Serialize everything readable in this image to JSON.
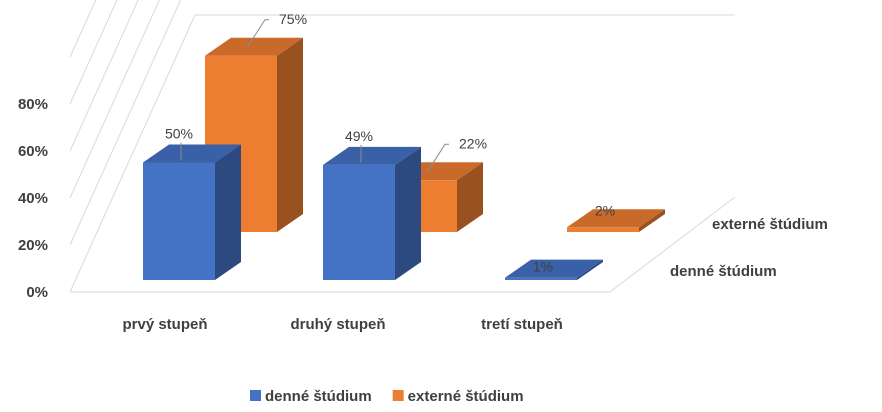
{
  "chart_data": {
    "type": "bar",
    "variant": "3d-column",
    "categories": [
      "prvý stupeň",
      "druhý stupeň",
      "tretí stupeň"
    ],
    "series": [
      {
        "name": "denné štúdium",
        "values": [
          50,
          49,
          1
        ],
        "labels": [
          "50%",
          "49%",
          "1%"
        ],
        "color": "#4472c4"
      },
      {
        "name": "externé štúdium",
        "values": [
          75,
          22,
          2
        ],
        "labels": [
          "75%",
          "22%",
          "2%"
        ],
        "color": "#ed7d31"
      }
    ],
    "yticks": [
      "0%",
      "20%",
      "40%",
      "60%",
      "80%"
    ],
    "ylim": [
      0,
      100
    ],
    "depth_labels": [
      "denné štúdium",
      "externé štúdium"
    ],
    "grid": true,
    "legend": {
      "position": "bottom",
      "entries": [
        "denné štúdium",
        "externé štúdium"
      ]
    },
    "title": "",
    "xlabel": "",
    "ylabel": ""
  }
}
